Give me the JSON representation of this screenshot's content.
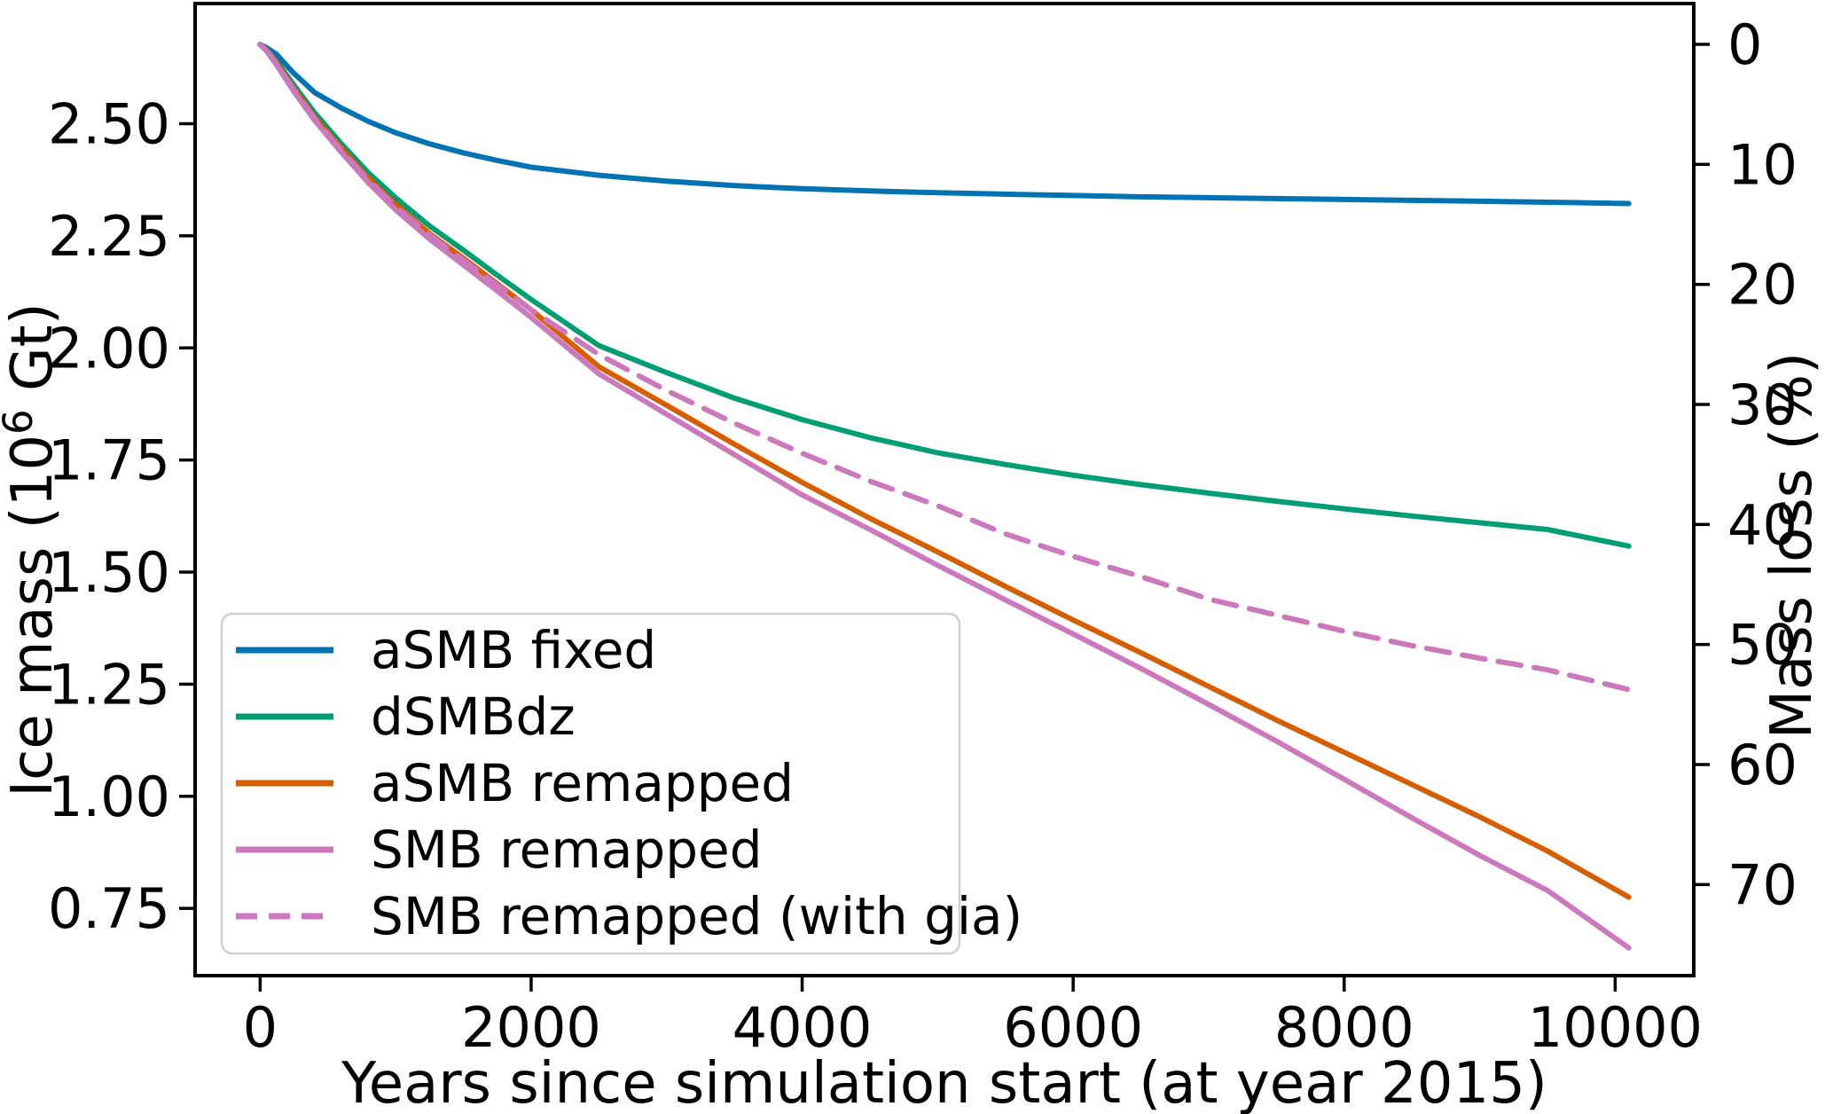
{
  "figure": {
    "background": "#ffffff",
    "text_color": "#000000",
    "spine_color": "#000000",
    "legend_border_color": "#cfcfcf",
    "legend_background": "#ffffff"
  },
  "chart_data": {
    "type": "line",
    "title": "",
    "xlabel": "Years since simulation start (at year 2015)",
    "ylabel_left": {
      "prefix": "Ice mass (10",
      "superscript": "6",
      "suffix": " Gt)"
    },
    "ylabel_right": "Mass loss (%)",
    "xlim": [
      -480,
      10580
    ],
    "ylim_left": [
      0.6,
      2.768
    ],
    "initial_mass_for_right_axis": 2.677,
    "grid": false,
    "legend_position": "lower-left-inside",
    "xticks": {
      "values": [
        0,
        2000,
        4000,
        6000,
        8000,
        10000
      ],
      "labels": [
        "0",
        "2000",
        "4000",
        "6000",
        "8000",
        "10000"
      ]
    },
    "yticks_left": {
      "values": [
        0.75,
        1.0,
        1.25,
        1.5,
        1.75,
        2.0,
        2.25,
        2.5
      ],
      "labels": [
        "0.75",
        "1.00",
        "1.25",
        "1.50",
        "1.75",
        "2.00",
        "2.25",
        "2.50"
      ]
    },
    "yticks_right": {
      "values": [
        0,
        10,
        20,
        30,
        40,
        50,
        60,
        70
      ],
      "labels": [
        "0",
        "10",
        "20",
        "30",
        "40",
        "50",
        "60",
        "70"
      ]
    },
    "x": [
      0,
      50,
      120,
      240,
      400,
      600,
      800,
      1000,
      1250,
      1500,
      1750,
      2000,
      2500,
      3000,
      3500,
      4000,
      4500,
      5000,
      5500,
      6000,
      6500,
      7000,
      7500,
      8000,
      8500,
      9000,
      9500,
      10100
    ],
    "series": [
      {
        "name": "aSMB fixed",
        "id": "asmb-fixed",
        "color": "#0173b2",
        "dash": false,
        "values": [
          2.677,
          2.669,
          2.655,
          2.615,
          2.57,
          2.535,
          2.505,
          2.48,
          2.455,
          2.435,
          2.418,
          2.403,
          2.385,
          2.372,
          2.362,
          2.355,
          2.35,
          2.346,
          2.343,
          2.34,
          2.337,
          2.335,
          2.333,
          2.331,
          2.329,
          2.327,
          2.325,
          2.322
        ]
      },
      {
        "name": "dSMBdz",
        "id": "dsmbdz",
        "color": "#029e73",
        "dash": false,
        "values": [
          2.677,
          2.664,
          2.64,
          2.59,
          2.525,
          2.455,
          2.39,
          2.335,
          2.272,
          2.218,
          2.162,
          2.108,
          2.005,
          1.945,
          1.888,
          1.84,
          1.8,
          1.766,
          1.74,
          1.716,
          1.695,
          1.676,
          1.658,
          1.641,
          1.625,
          1.61,
          1.595,
          1.558
        ]
      },
      {
        "name": "aSMB remapped",
        "id": "asmb-remapped",
        "color": "#d55e00",
        "dash": false,
        "values": [
          2.677,
          2.663,
          2.636,
          2.582,
          2.515,
          2.445,
          2.378,
          2.32,
          2.255,
          2.2,
          2.143,
          2.085,
          1.958,
          1.872,
          1.785,
          1.7,
          1.62,
          1.545,
          1.468,
          1.393,
          1.32,
          1.245,
          1.17,
          1.098,
          1.026,
          0.954,
          0.878,
          0.775
        ]
      },
      {
        "name": "SMB remapped",
        "id": "smb-remapped",
        "color": "#cc78bc",
        "dash": false,
        "values": [
          2.677,
          2.661,
          2.632,
          2.576,
          2.508,
          2.436,
          2.368,
          2.308,
          2.243,
          2.185,
          2.127,
          2.068,
          1.942,
          1.852,
          1.762,
          1.672,
          1.595,
          1.515,
          1.438,
          1.362,
          1.285,
          1.205,
          1.123,
          1.038,
          0.952,
          0.868,
          0.79,
          0.662
        ]
      },
      {
        "name": "SMB remapped (with gia)",
        "id": "smb-remapped-with-gia",
        "color": "#cc78bc",
        "dash": true,
        "values": [
          2.677,
          2.662,
          2.634,
          2.579,
          2.512,
          2.44,
          2.374,
          2.315,
          2.252,
          2.196,
          2.14,
          2.085,
          1.985,
          1.905,
          1.832,
          1.765,
          1.703,
          1.648,
          1.585,
          1.535,
          1.49,
          1.44,
          1.404,
          1.368,
          1.336,
          1.308,
          1.282,
          1.238
        ]
      }
    ],
    "legend": {
      "entries": [
        {
          "label": "aSMB fixed",
          "series_id": "asmb-fixed"
        },
        {
          "label": "dSMBdz",
          "series_id": "dsmbdz"
        },
        {
          "label": "aSMB remapped",
          "series_id": "asmb-remapped"
        },
        {
          "label": "SMB remapped",
          "series_id": "smb-remapped"
        },
        {
          "label": "SMB remapped (with gia)",
          "series_id": "smb-remapped-with-gia"
        }
      ]
    }
  }
}
